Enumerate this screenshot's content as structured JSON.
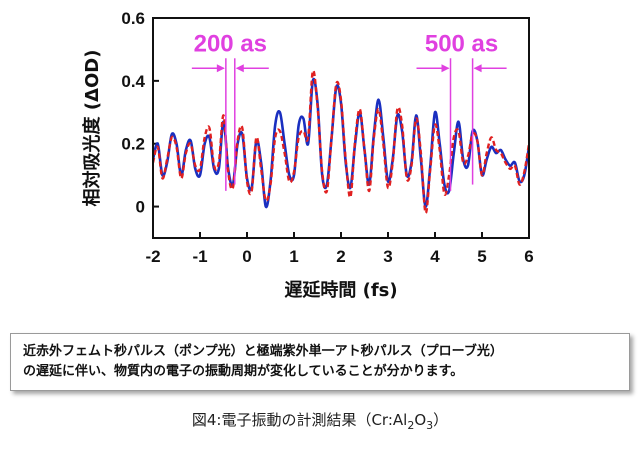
{
  "chart_data": {
    "type": "line",
    "xlabel": "遅延時間 (fs)",
    "ylabel": "相対吸光度 (ΔOD)",
    "xlim": [
      -2,
      6
    ],
    "ylim": [
      -0.1,
      0.6
    ],
    "x_ticks": [
      -2,
      -1,
      0,
      1,
      2,
      3,
      4,
      5,
      6
    ],
    "x_tick_labels": [
      "-2",
      "-1",
      "0",
      "1",
      "2",
      "3",
      "4",
      "5",
      "6"
    ],
    "y_ticks": [
      0,
      0.2,
      0.4,
      0.6
    ],
    "y_tick_labels": [
      "0",
      "0.2",
      "0.4",
      "0.6"
    ],
    "colors": {
      "measured": "#1a2fc0",
      "simulated": "#e02020",
      "annotation": "#e040e0"
    },
    "series": [
      {
        "style": "solid",
        "x": [
          -2.0,
          -1.9,
          -1.8,
          -1.7,
          -1.6,
          -1.5,
          -1.4,
          -1.3,
          -1.2,
          -1.1,
          -1.0,
          -0.9,
          -0.8,
          -0.7,
          -0.6,
          -0.5,
          -0.4,
          -0.3,
          -0.2,
          -0.1,
          0.0,
          0.1,
          0.2,
          0.3,
          0.4,
          0.5,
          0.6,
          0.7,
          0.8,
          0.9,
          1.0,
          1.1,
          1.2,
          1.3,
          1.4,
          1.5,
          1.6,
          1.7,
          1.8,
          1.9,
          2.0,
          2.1,
          2.2,
          2.3,
          2.4,
          2.5,
          2.6,
          2.7,
          2.8,
          2.9,
          3.0,
          3.1,
          3.2,
          3.3,
          3.4,
          3.5,
          3.6,
          3.7,
          3.8,
          3.9,
          4.0,
          4.1,
          4.2,
          4.3,
          4.4,
          4.5,
          4.6,
          4.7,
          4.8,
          4.9,
          5.0,
          5.1,
          5.2,
          5.3,
          5.4,
          5.5,
          5.6,
          5.7,
          5.8,
          5.9,
          6.0
        ],
        "y": [
          0.15,
          0.2,
          0.1,
          0.14,
          0.23,
          0.2,
          0.1,
          0.18,
          0.21,
          0.12,
          0.1,
          0.2,
          0.22,
          0.12,
          0.12,
          0.27,
          0.12,
          0.07,
          0.2,
          0.23,
          0.09,
          0.06,
          0.21,
          0.14,
          0.0,
          0.08,
          0.26,
          0.3,
          0.2,
          0.1,
          0.1,
          0.26,
          0.28,
          0.2,
          0.4,
          0.33,
          0.1,
          0.07,
          0.22,
          0.38,
          0.33,
          0.14,
          0.06,
          0.2,
          0.3,
          0.18,
          0.07,
          0.23,
          0.34,
          0.22,
          0.08,
          0.15,
          0.29,
          0.24,
          0.1,
          0.14,
          0.29,
          0.15,
          0.0,
          0.13,
          0.3,
          0.2,
          0.07,
          0.05,
          0.17,
          0.27,
          0.15,
          0.13,
          0.24,
          0.21,
          0.1,
          0.15,
          0.19,
          0.17,
          0.18,
          0.15,
          0.13,
          0.14,
          0.08,
          0.1,
          0.19
        ]
      },
      {
        "style": "dashed",
        "x": [
          -2.0,
          -1.9,
          -1.8,
          -1.7,
          -1.6,
          -1.5,
          -1.4,
          -1.3,
          -1.2,
          -1.1,
          -1.0,
          -0.9,
          -0.8,
          -0.7,
          -0.6,
          -0.5,
          -0.4,
          -0.3,
          -0.2,
          -0.1,
          0.0,
          0.1,
          0.2,
          0.3,
          0.4,
          0.5,
          0.6,
          0.7,
          0.8,
          0.9,
          1.0,
          1.1,
          1.2,
          1.3,
          1.4,
          1.5,
          1.6,
          1.7,
          1.8,
          1.9,
          2.0,
          2.1,
          2.2,
          2.3,
          2.4,
          2.5,
          2.6,
          2.7,
          2.8,
          2.9,
          3.0,
          3.1,
          3.2,
          3.3,
          3.4,
          3.5,
          3.6,
          3.7,
          3.8,
          3.9,
          4.0,
          4.1,
          4.2,
          4.3,
          4.4,
          4.5,
          4.6,
          4.7,
          4.8,
          4.9,
          5.0,
          5.1,
          5.2,
          5.3,
          5.4,
          5.5,
          5.6,
          5.7,
          5.8,
          5.9,
          6.0
        ],
        "y": [
          0.14,
          0.19,
          0.09,
          0.15,
          0.22,
          0.19,
          0.09,
          0.17,
          0.2,
          0.13,
          0.12,
          0.22,
          0.25,
          0.13,
          0.14,
          0.29,
          0.11,
          0.06,
          0.21,
          0.25,
          0.08,
          0.05,
          0.22,
          0.12,
          0.02,
          0.07,
          0.22,
          0.24,
          0.17,
          0.08,
          0.11,
          0.22,
          0.24,
          0.22,
          0.43,
          0.32,
          0.11,
          0.05,
          0.22,
          0.39,
          0.34,
          0.15,
          0.03,
          0.21,
          0.31,
          0.18,
          0.05,
          0.22,
          0.31,
          0.2,
          0.06,
          0.14,
          0.31,
          0.26,
          0.09,
          0.13,
          0.28,
          0.17,
          -0.02,
          0.12,
          0.26,
          0.18,
          0.04,
          0.1,
          0.22,
          0.24,
          0.14,
          0.16,
          0.23,
          0.21,
          0.1,
          0.17,
          0.22,
          0.18,
          0.17,
          0.14,
          0.12,
          0.13,
          0.07,
          0.11,
          0.2
        ]
      }
    ],
    "annotations": [
      {
        "text": "200 as",
        "x1": -0.45,
        "x2": -0.26,
        "arrow_y": 0.44
      },
      {
        "text": "500 as",
        "x1": 4.33,
        "x2": 4.8,
        "arrow_y": 0.44
      }
    ]
  },
  "caption_box": {
    "line1": "近赤外フェムト秒パルス（ポンプ光）と極端紫外単一アト秒パルス（プローブ光）",
    "line2": "の遅延に伴い、物質内の電子の振動周期が変化していることが分かります。"
  },
  "figure_caption": {
    "prefix": "図4:電子振動の計測結果（Cr:Al",
    "sub1": "2",
    "mid": "O",
    "sub2": "3",
    "suffix": "）"
  }
}
